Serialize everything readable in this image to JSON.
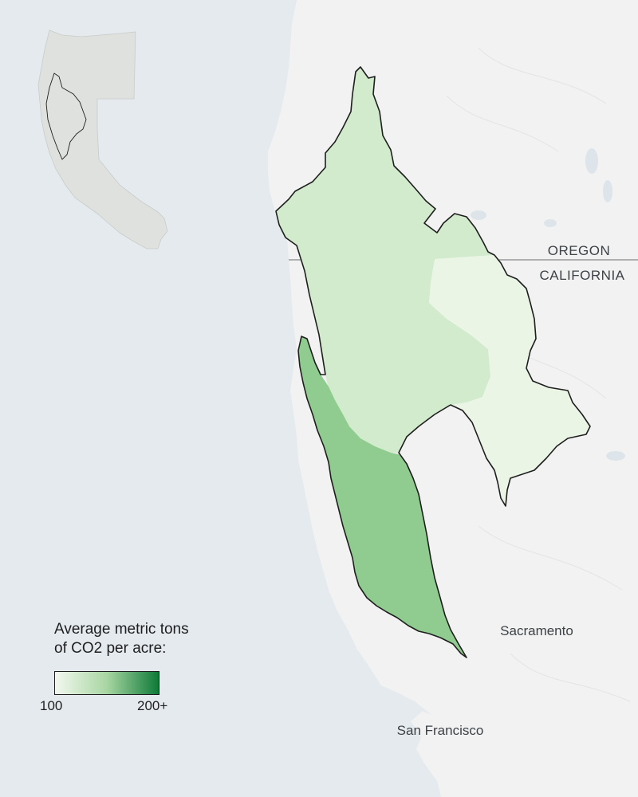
{
  "map": {
    "labels": {
      "oregon": "OREGON",
      "california": "CALIFORNIA",
      "sacramento": "Sacramento",
      "san_francisco": "San Francisco"
    },
    "inset_locator": "oregon-california-outline"
  },
  "legend": {
    "title_line1": "Average metric tons",
    "title_line2": "of CO2 per acre:",
    "min_label": "100",
    "max_label": "200+",
    "gradient": [
      "#f2f8ef",
      "#0d7a38"
    ]
  },
  "colors": {
    "water": "#e4eaee",
    "land": "#f1f2f1",
    "region_north": "#d2ebcc",
    "region_east": "#eaf5e6",
    "region_coast": "#90cc8f",
    "outline": "#1e1e1e"
  }
}
